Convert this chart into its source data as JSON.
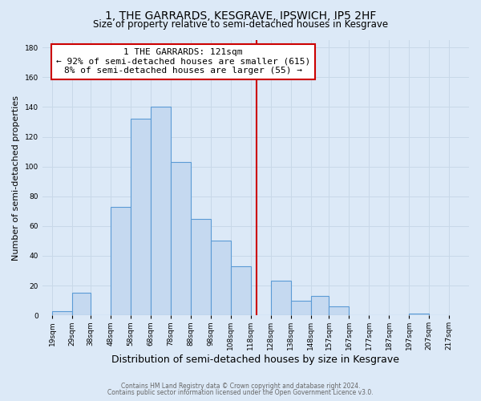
{
  "title": "1, THE GARRARDS, KESGRAVE, IPSWICH, IP5 2HF",
  "subtitle": "Size of property relative to semi-detached houses in Kesgrave",
  "xlabel": "Distribution of semi-detached houses by size in Kesgrave",
  "ylabel": "Number of semi-detached properties",
  "bar_left_edges": [
    19,
    29,
    38,
    48,
    58,
    68,
    78,
    88,
    98,
    108,
    118,
    128,
    138,
    148,
    157,
    167,
    177,
    187,
    197,
    207
  ],
  "bar_widths": [
    10,
    9,
    10,
    10,
    10,
    10,
    10,
    10,
    10,
    10,
    10,
    10,
    10,
    9,
    10,
    10,
    10,
    10,
    10,
    10
  ],
  "bar_heights": [
    3,
    15,
    0,
    73,
    132,
    140,
    103,
    65,
    50,
    33,
    0,
    23,
    10,
    13,
    6,
    0,
    0,
    0,
    1,
    0
  ],
  "bar_color": "#c5d9f0",
  "bar_edge_color": "#5b9bd5",
  "vline_x": 121,
  "vline_color": "#cc0000",
  "ann_line1": "1 THE GARRARDS: 121sqm",
  "ann_line2": "← 92% of semi-detached houses are smaller (615)",
  "ann_line3": "8% of semi-detached houses are larger (55) →",
  "annotation_box_color": "#ffffff",
  "annotation_box_edge": "#cc0000",
  "ylim": [
    0,
    185
  ],
  "yticks": [
    0,
    20,
    40,
    60,
    80,
    100,
    120,
    140,
    160,
    180
  ],
  "xtick_labels": [
    "19sqm",
    "29sqm",
    "38sqm",
    "48sqm",
    "58sqm",
    "68sqm",
    "78sqm",
    "88sqm",
    "98sqm",
    "108sqm",
    "118sqm",
    "128sqm",
    "138sqm",
    "148sqm",
    "157sqm",
    "167sqm",
    "177sqm",
    "187sqm",
    "197sqm",
    "207sqm",
    "217sqm"
  ],
  "xtick_positions": [
    19,
    29,
    38,
    48,
    58,
    68,
    78,
    88,
    98,
    108,
    118,
    128,
    138,
    148,
    157,
    167,
    177,
    187,
    197,
    207,
    217
  ],
  "grid_color": "#c8d8e8",
  "bg_color": "#dce9f7",
  "footer1": "Contains HM Land Registry data © Crown copyright and database right 2024.",
  "footer2": "Contains public sector information licensed under the Open Government Licence v3.0.",
  "title_fontsize": 10,
  "subtitle_fontsize": 8.5,
  "xlabel_fontsize": 9,
  "ylabel_fontsize": 8,
  "tick_fontsize": 6.5,
  "footer_fontsize": 5.5,
  "ann_fontsize": 8
}
